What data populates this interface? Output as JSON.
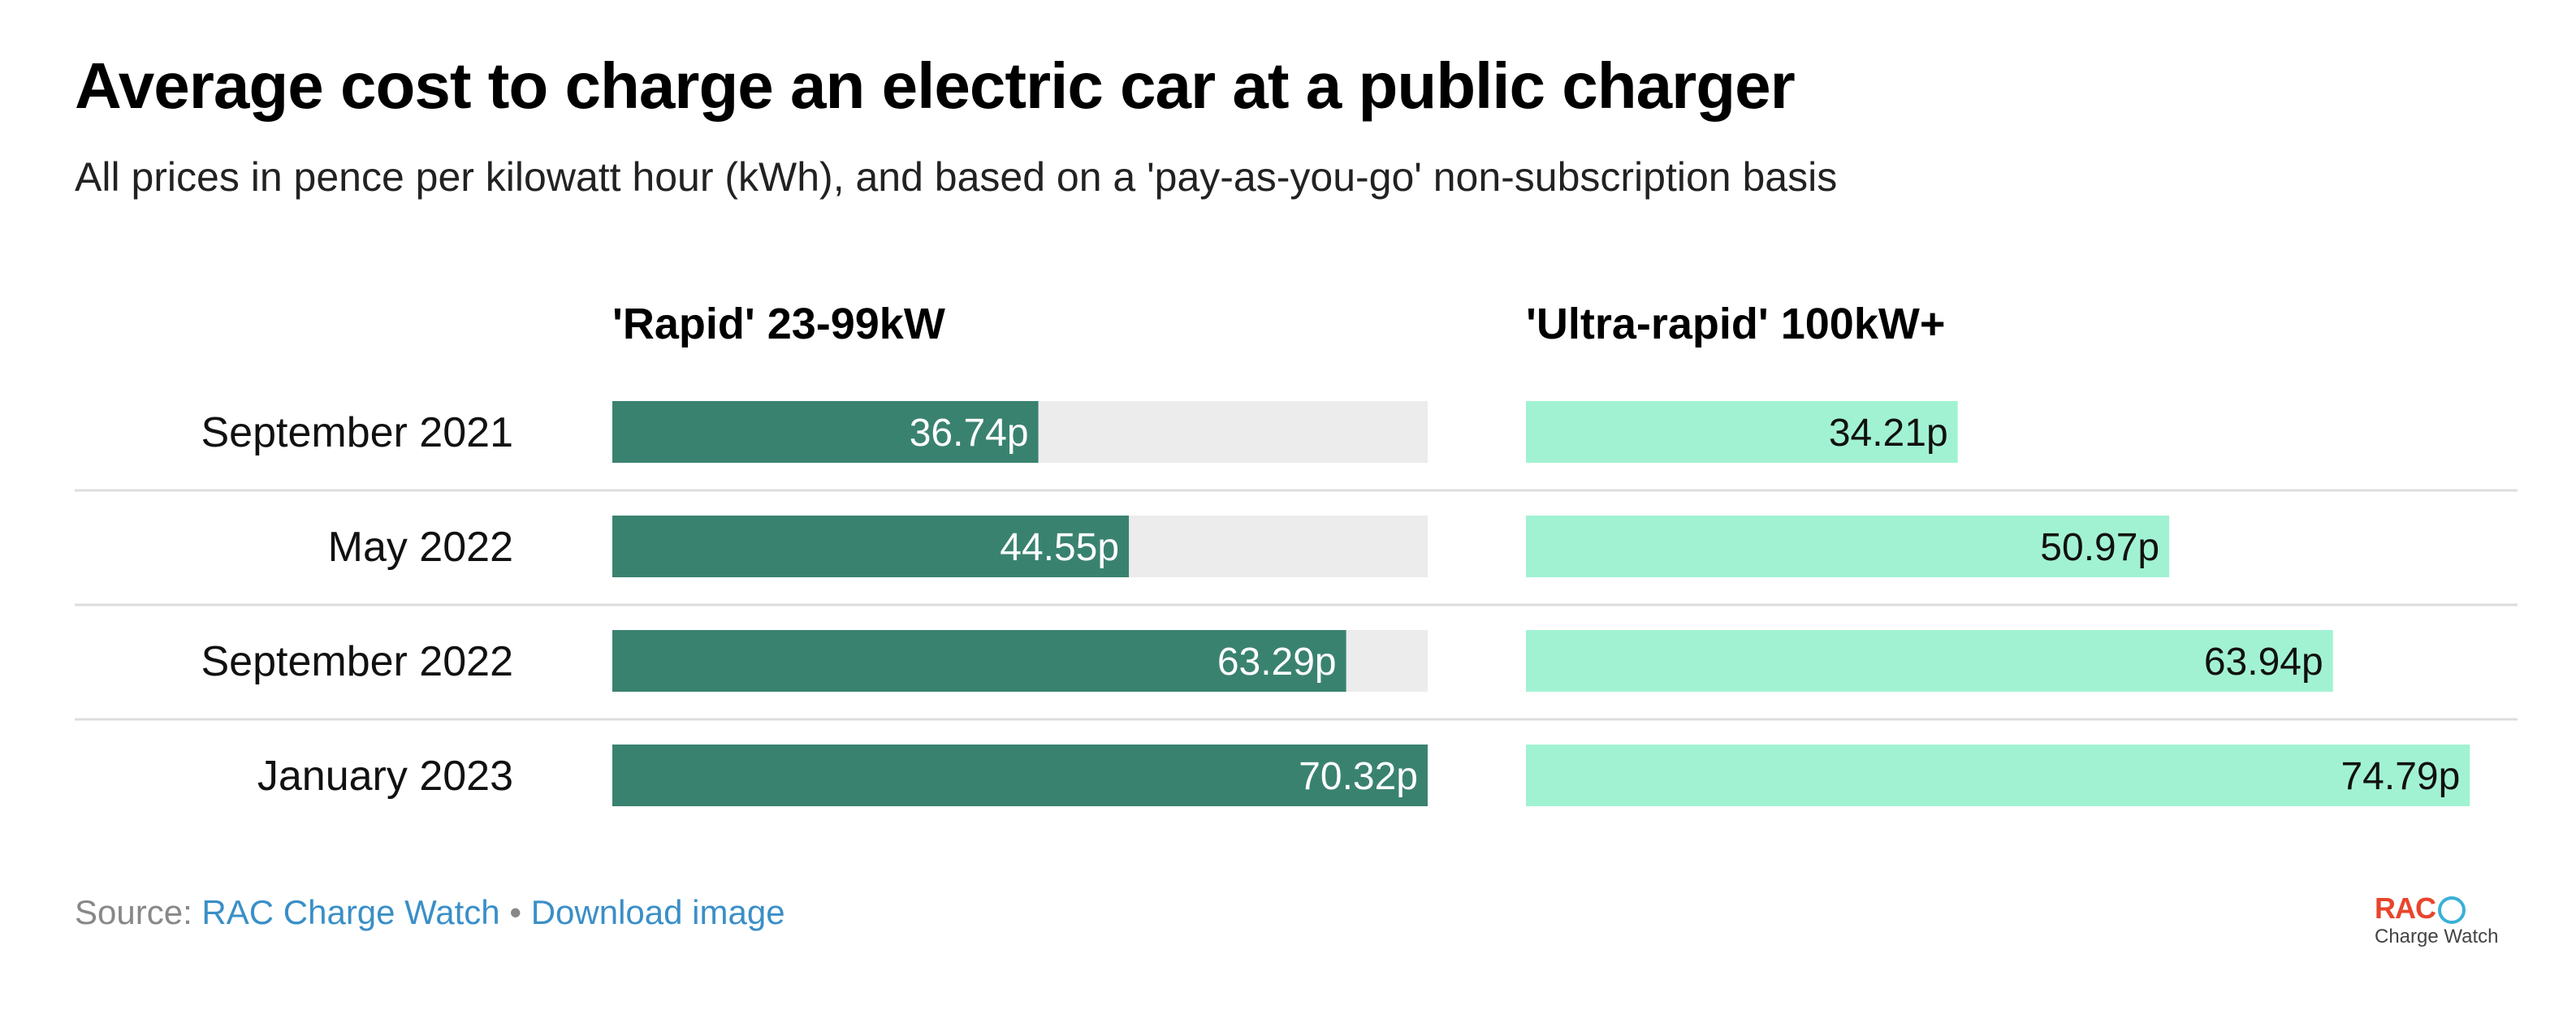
{
  "chart_data": {
    "type": "bar",
    "title": "Average cost to charge an electric car at a public charger",
    "subtitle": "All prices in pence per kilowatt hour (kWh), and based on a 'pay-as-you-go' non-subscription basis",
    "categories": [
      "September 2021",
      "May 2022",
      "September 2022",
      "January 2023"
    ],
    "series": [
      {
        "name": "'Rapid' 23-99kW",
        "values": [
          36.74,
          44.55,
          63.29,
          70.32
        ],
        "labels": [
          "36.74p",
          "44.55p",
          "63.29p",
          "70.32p"
        ],
        "color": "#3a8270",
        "label_color": "#ffffff",
        "track_color": "#ececec",
        "xlim": [
          0,
          70.32
        ]
      },
      {
        "name": "'Ultra-rapid' 100kW+",
        "values": [
          34.21,
          50.97,
          63.94,
          74.79
        ],
        "labels": [
          "34.21p",
          "50.97p",
          "63.94p",
          "74.79p"
        ],
        "color": "#a1f2d3",
        "label_color": "#111111",
        "track_color": null,
        "xlim": [
          0,
          75.8
        ]
      }
    ],
    "grid": false,
    "row_divider_color": "#dddddd"
  },
  "footer": {
    "source_prefix": "Source: ",
    "source_link": "RAC Charge Watch",
    "separator": " • ",
    "download_link": "Download image"
  },
  "logo": {
    "brand": "RAC",
    "tagline": "Charge Watch"
  }
}
